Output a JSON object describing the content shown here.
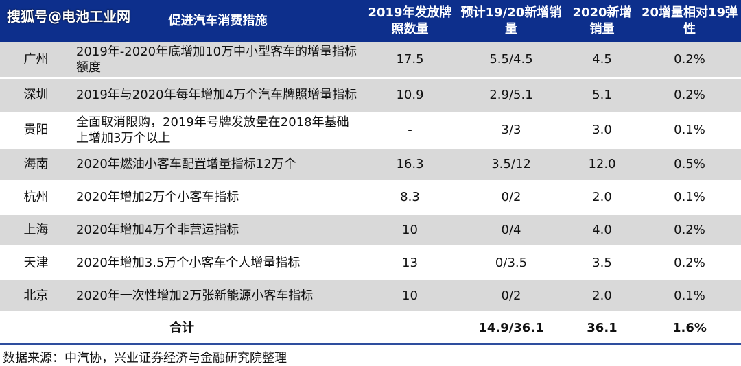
{
  "watermark": "搜狐号@电池工业网",
  "header": {
    "columns": [
      "",
      "促进汽车消费措施",
      "2019年发放牌照数量",
      "预计19/20新增销量",
      "2020新增销量",
      "20增量相对19弹性"
    ]
  },
  "table": {
    "rows": [
      [
        "广州",
        "2019年-2020年底增加10万中小型客车的增量指标额度",
        "17.5",
        "5.5/4.5",
        "4.5",
        "0.2%"
      ],
      [
        "深圳",
        "2019年与2020年每年增加4万个汽车牌照增量指标",
        "10.9",
        "2.9/5.1",
        "5.1",
        "0.2%"
      ],
      [
        "贵阳",
        "全面取消限购，2019年号牌发放量在2018年基础上增加3万个以上",
        "-",
        "3/3",
        "3.0",
        "0.1%"
      ],
      [
        "海南",
        "2020年燃油小客车配置增量指标12万个",
        "16.3",
        "3.5/12",
        "12.0",
        "0.5%"
      ],
      [
        "杭州",
        "2020年增加2万个小客车指标",
        "8.3",
        "0/2",
        "2.0",
        "0.1%"
      ],
      [
        "上海",
        "2020年增加4万个非营运指标",
        "10",
        "0/4",
        "4.0",
        "0.2%"
      ],
      [
        "天津",
        "2020年增加3.5万个小客车个人增量指标",
        "13",
        "0/3.5",
        "3.5",
        "0.2%"
      ],
      [
        "北京",
        "2020年一次性增加2万张新能源小客车指标",
        "10",
        "0/2",
        "2.0",
        "0.1%"
      ]
    ],
    "total": {
      "label": "合计",
      "cells": [
        "14.9/36.1",
        "36.1",
        "1.6%"
      ]
    }
  },
  "source": "数据来源：中汽协，兴业证券经济与金融研究院整理"
}
